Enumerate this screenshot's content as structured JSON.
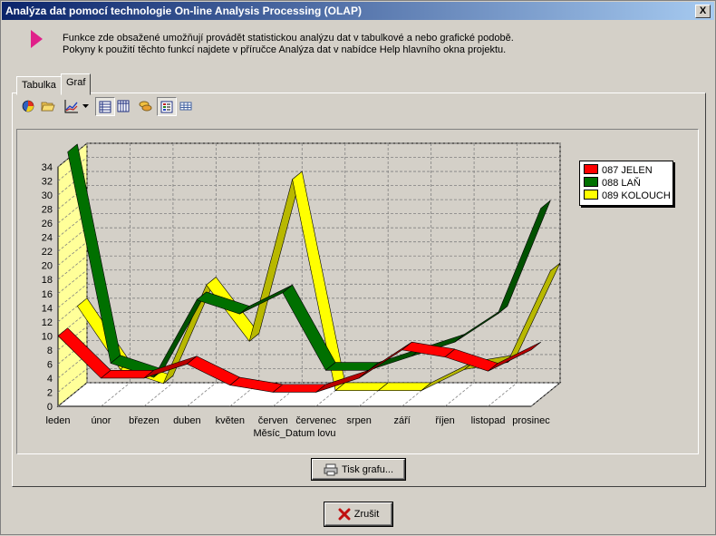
{
  "window": {
    "title": "Analýza dat pomocí technologie On-line Analysis Processing (OLAP)",
    "close_label": "X"
  },
  "info": {
    "line1": "Funkce zde obsažené umožňují provádět statistickou analýzu dat v tabulkové a nebo grafické podobě.",
    "line2": "Pokyny k použití těchto funkcí najdete v příručce Analýza dat v nabídce Help hlavního okna projektu."
  },
  "tabs": [
    {
      "label": "Tabulka"
    },
    {
      "label": "Graf"
    }
  ],
  "toolbar": {
    "icons": [
      "chart-wizard-icon",
      "open-folder-icon",
      "chart-type-icon",
      "chart-type-dropdown-icon",
      "by-rows-icon",
      "by-columns-icon",
      "3d-toggle-icon",
      "legend-toggle-icon",
      "data-table-icon"
    ]
  },
  "chart_data": {
    "type": "line",
    "style": "3d-ribbon",
    "xlabel": "Měsíc_Datum lovu",
    "ylabel": "",
    "categories": [
      "leden",
      "únor",
      "březen",
      "duben",
      "květen",
      "červen",
      "červenec",
      "srpen",
      "září",
      "říjen",
      "listopad",
      "prosinec"
    ],
    "ylim": [
      0,
      34
    ],
    "yticks": [
      0,
      2,
      4,
      6,
      8,
      10,
      12,
      14,
      16,
      18,
      20,
      22,
      24,
      26,
      28,
      30,
      32,
      34
    ],
    "grid": true,
    "legend_position": "right",
    "series": [
      {
        "name": "087 JELEN",
        "color": "#ff0000",
        "values": [
          10,
          4,
          4,
          6,
          3,
          2,
          2,
          4,
          8,
          7,
          5,
          8
        ]
      },
      {
        "name": "088 LAŇ",
        "color": "#007000",
        "values": [
          35,
          5,
          3,
          14,
          12,
          15,
          4,
          4,
          6,
          8,
          12,
          27
        ]
      },
      {
        "name": "089 KOLOUCH",
        "color": "#ffff00",
        "values": [
          12,
          3,
          1,
          15,
          7,
          30,
          0,
          0,
          0,
          3,
          4,
          17
        ]
      }
    ]
  },
  "buttons": {
    "print_label": "Tisk grafu...",
    "cancel_label": "Zrušit"
  }
}
